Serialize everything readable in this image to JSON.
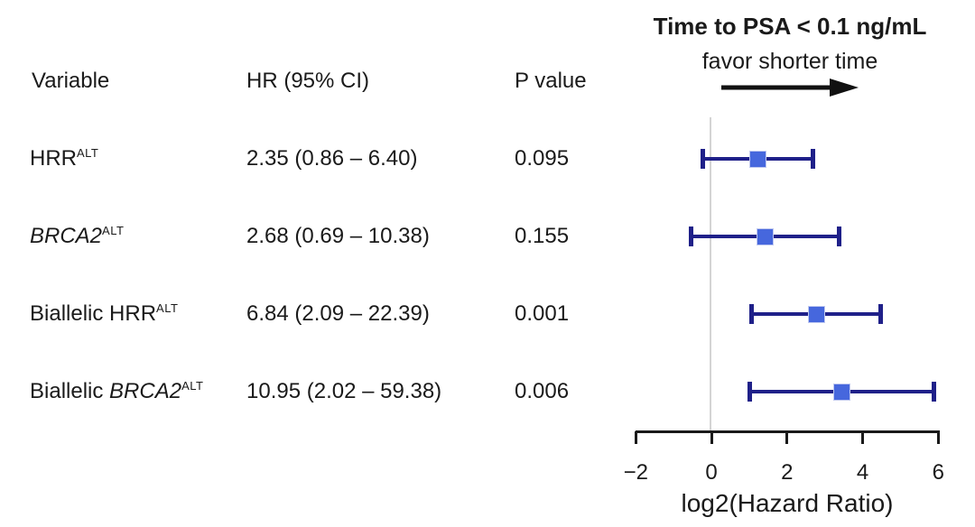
{
  "table": {
    "headers": {
      "variable": "Variable",
      "hr_ci": "HR (95% CI)",
      "p_value": "P value"
    },
    "rows": [
      {
        "label_plain": "HRR",
        "label_italic": "",
        "label_sup": "ALT",
        "hr_ci": "2.35 (0.86 – 6.40)",
        "p_value": "0.095",
        "hr": 2.35,
        "ci_low": 0.86,
        "ci_high": 6.4
      },
      {
        "label_plain": "",
        "label_italic": "BRCA2",
        "label_sup": "ALT",
        "hr_ci": "2.68 (0.69 – 10.38)",
        "p_value": "0.155",
        "hr": 2.68,
        "ci_low": 0.69,
        "ci_high": 10.38
      },
      {
        "label_plain": "Biallelic HRR",
        "label_italic": "",
        "label_sup": "ALT",
        "hr_ci": "6.84 (2.09 – 22.39)",
        "p_value": "0.001",
        "hr": 6.84,
        "ci_low": 2.09,
        "ci_high": 22.39
      },
      {
        "label_plain": "Biallelic ",
        "label_italic": "BRCA2",
        "label_sup": "ALT",
        "hr_ci": "10.95 (2.02 – 59.38)",
        "p_value": "0.006",
        "hr": 10.95,
        "ci_low": 2.02,
        "ci_high": 59.38
      }
    ]
  },
  "chart_data": {
    "type": "forest",
    "title": "Time to PSA < 0.1 ng/mL",
    "subtitle": "favor shorter time",
    "direction_hint": "arrow pointing right",
    "xlabel": "log2(Hazard Ratio)",
    "x_scale": "log2 of hazard ratio",
    "x_ticks": [
      -2,
      0,
      2,
      4,
      6
    ],
    "xlim": [
      -2,
      6
    ],
    "reference_line_at": 0,
    "grid": false,
    "series": [
      {
        "name": "HRR ALT",
        "hr": 2.35,
        "ci_low": 0.86,
        "ci_high": 6.4,
        "p": 0.095
      },
      {
        "name": "BRCA2 ALT",
        "hr": 2.68,
        "ci_low": 0.69,
        "ci_high": 10.38,
        "p": 0.155
      },
      {
        "name": "Biallelic HRR ALT",
        "hr": 6.84,
        "ci_low": 2.09,
        "ci_high": 22.39,
        "p": 0.001
      },
      {
        "name": "Biallelic BRCA2 ALT",
        "hr": 10.95,
        "ci_low": 2.02,
        "ci_high": 59.38,
        "p": 0.006
      }
    ]
  },
  "colors": {
    "marker": "#4667dd",
    "marker_border": "#bfc8f0",
    "error_bar": "#1f2089",
    "reference_line": "#d4d4d4",
    "axis": "#1a1a1a",
    "text": "#1a1a1a"
  }
}
